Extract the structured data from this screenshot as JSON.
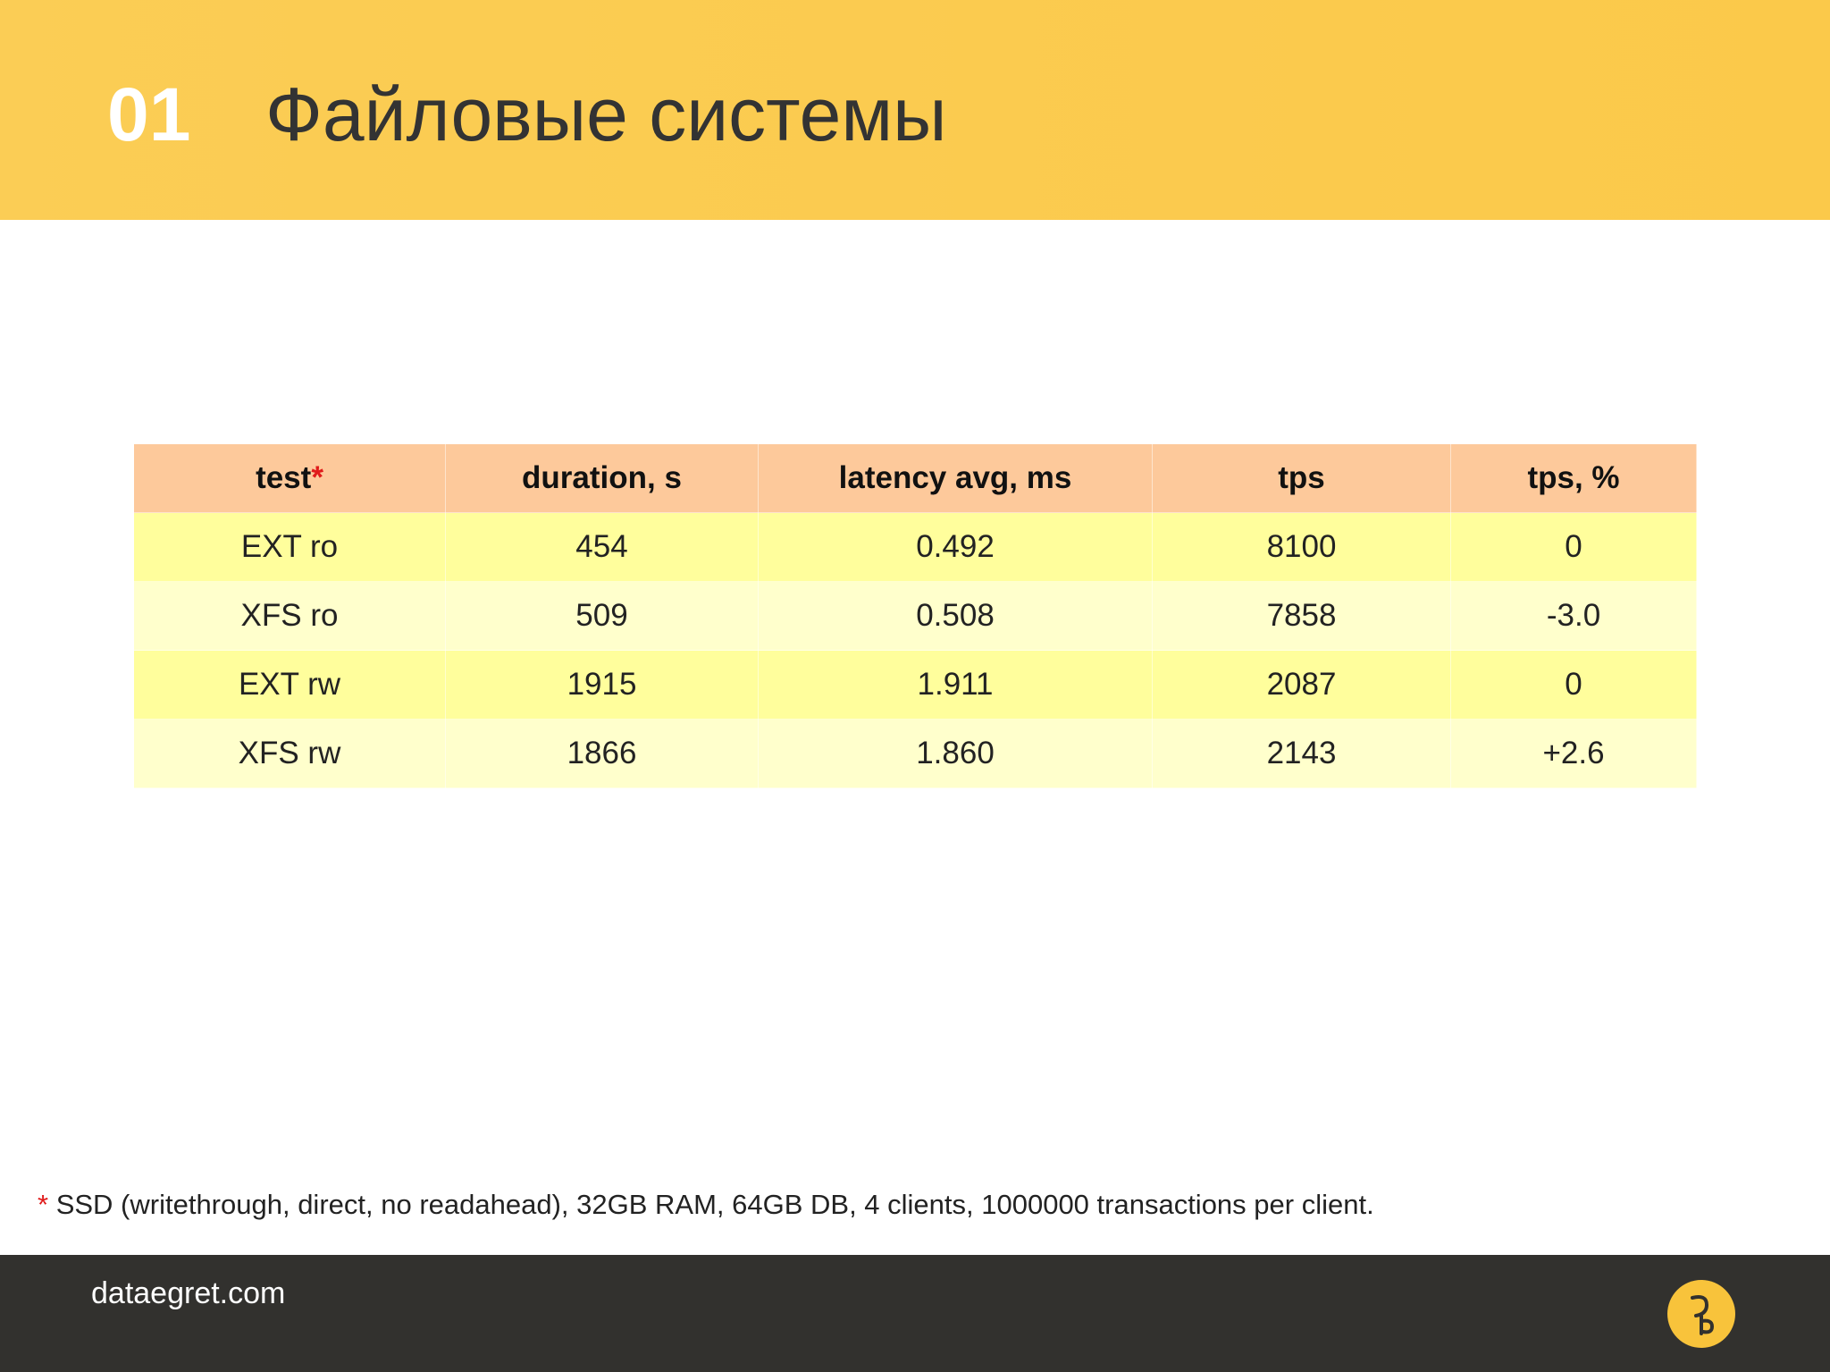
{
  "header": {
    "number": "01",
    "title": "Файловые системы"
  },
  "table": {
    "columns": [
      {
        "text": "test",
        "mark": "*"
      },
      {
        "text": "duration, s"
      },
      {
        "text": "latency avg, ms"
      },
      {
        "text": "tps"
      },
      {
        "text": "tps, %"
      }
    ],
    "rows": [
      [
        "EXT ro",
        "454",
        "0.492",
        "8100",
        "0"
      ],
      [
        "XFS ro",
        "509",
        "0.508",
        "7858",
        "-3.0"
      ],
      [
        "EXT rw",
        "1915",
        "1.911",
        "2087",
        "0"
      ],
      [
        "XFS rw",
        "1866",
        "1.860",
        "2143",
        "+2.6"
      ]
    ]
  },
  "footnote": {
    "mark": "*",
    "text": "SSD (writethrough, direct, no readahead), 32GB RAM, 64GB DB, 4 clients, 1000000 transactions per client."
  },
  "footer": {
    "site": "dataegret.com"
  }
}
